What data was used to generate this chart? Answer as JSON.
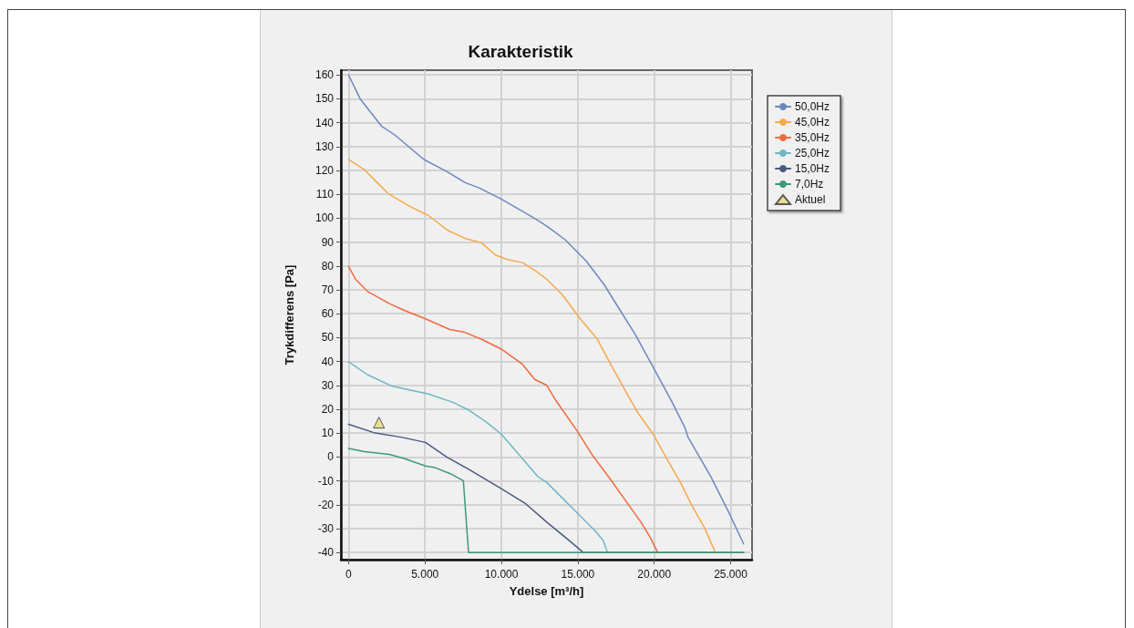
{
  "chart_data": {
    "type": "line",
    "title": "Karakteristik",
    "xlabel": "Ydelse [m³/h]",
    "ylabel": "Trykdifferens [Pa]",
    "xlim": [
      -500,
      26400
    ],
    "ylim": [
      -43,
      162
    ],
    "xticks": [
      0,
      {
        "value": 5000,
        "label": "5.000"
      },
      {
        "value": 10000,
        "label": "10.000"
      },
      {
        "value": 15000,
        "label": "15.000"
      },
      {
        "value": 20000,
        "label": "20.000"
      },
      {
        "value": 25000,
        "label": "25.000"
      }
    ],
    "yticks": [
      -40,
      -30,
      -20,
      -10,
      0,
      10,
      20,
      30,
      40,
      50,
      60,
      70,
      80,
      90,
      100,
      110,
      120,
      130,
      140,
      150,
      160
    ],
    "grid": true,
    "legend": "top right",
    "marker": "none",
    "line_style": "solid",
    "series": [
      {
        "name": "50,0Hz",
        "color": "#6d88c0",
        "x": [
          0,
          757,
          2150,
          3040,
          4930,
          6420,
          7600,
          8600,
          9990,
          12180,
          12970,
          14170,
          15560,
          16750,
          17740,
          18740,
          19930,
          21120,
          22020,
          22210,
          23700,
          24890,
          25850
        ],
        "values": [
          160,
          150,
          138.6,
          134.8,
          124.6,
          119.6,
          115,
          112.5,
          108,
          99.9,
          96.7,
          91,
          82,
          71.9,
          61.7,
          51.5,
          37.6,
          23.6,
          12.1,
          8.3,
          -8.2,
          -23.4,
          -36.4
        ]
      },
      {
        "name": "45,0Hz",
        "color": "#f5a94a",
        "x": [
          0,
          1050,
          1850,
          2650,
          4030,
          5230,
          6520,
          7610,
          8700,
          9600,
          10390,
          11380,
          12180,
          12970,
          13970,
          15160,
          16250,
          17150,
          18140,
          18930,
          19930,
          20920,
          21720,
          22510,
          23300,
          24000
        ],
        "values": [
          124.6,
          120.2,
          115.1,
          110,
          104.9,
          101.1,
          94.8,
          91.6,
          89.7,
          84.6,
          82.7,
          81.4,
          78.2,
          74.4,
          68.1,
          57.9,
          49.6,
          38.8,
          27.4,
          18.5,
          9.6,
          -1.9,
          -10.7,
          -20.9,
          -29.8,
          -40
        ]
      },
      {
        "name": "35,0Hz",
        "color": "#ef6a3e",
        "x": [
          0,
          460,
          1250,
          2650,
          3640,
          5030,
          6620,
          7610,
          8800,
          9990,
          11380,
          12180,
          12970,
          13570,
          14960,
          15960,
          17150,
          18140,
          19130,
          19730,
          20230
        ],
        "values": [
          79.8,
          74.4,
          69.3,
          64.3,
          61.4,
          57.9,
          53.4,
          52.2,
          49,
          45.2,
          38.8,
          32.5,
          30,
          23.6,
          10.9,
          0.7,
          -9.5,
          -18.4,
          -27.3,
          -33.6,
          -40
        ]
      },
      {
        "name": "25,0Hz",
        "color": "#6fb7c3",
        "x": [
          0,
          1250,
          2840,
          4030,
          5230,
          6820,
          7810,
          9000,
          9990,
          11190,
          12380,
          12970,
          13970,
          14960,
          16150,
          16650,
          16950
        ],
        "values": [
          39.9,
          34.4,
          29.7,
          28,
          26.4,
          22.9,
          19.8,
          14.7,
          9.6,
          0.7,
          -8.2,
          -10.7,
          -17.1,
          -23.4,
          -31.1,
          -34.9,
          -40
        ]
      },
      {
        "name": "15,0Hz",
        "color": "#4a5a85",
        "x": [
          0,
          1650,
          3440,
          5030,
          6420,
          7810,
          9990,
          11590,
          12970,
          14170,
          15360,
          25850
        ],
        "values": [
          13.7,
          10.2,
          8.3,
          6.1,
          0,
          -5,
          -13.3,
          -19.6,
          -27.3,
          -33.6,
          -40,
          -40
        ]
      },
      {
        "name": "7,0Hz",
        "color": "#3b9a78",
        "x": [
          0,
          1050,
          2650,
          3640,
          5030,
          5630,
          6620,
          7510,
          7850,
          25850
        ],
        "values": [
          3.6,
          2.2,
          1.1,
          -0.6,
          -3.8,
          -4.4,
          -6.9,
          -9.9,
          -40,
          -40
        ]
      },
      {
        "name": "Aktuel",
        "type": "scatter",
        "marker": "triangle",
        "color": "#e6dc7a",
        "x": [
          1990
        ],
        "values": [
          14.4
        ]
      }
    ]
  }
}
